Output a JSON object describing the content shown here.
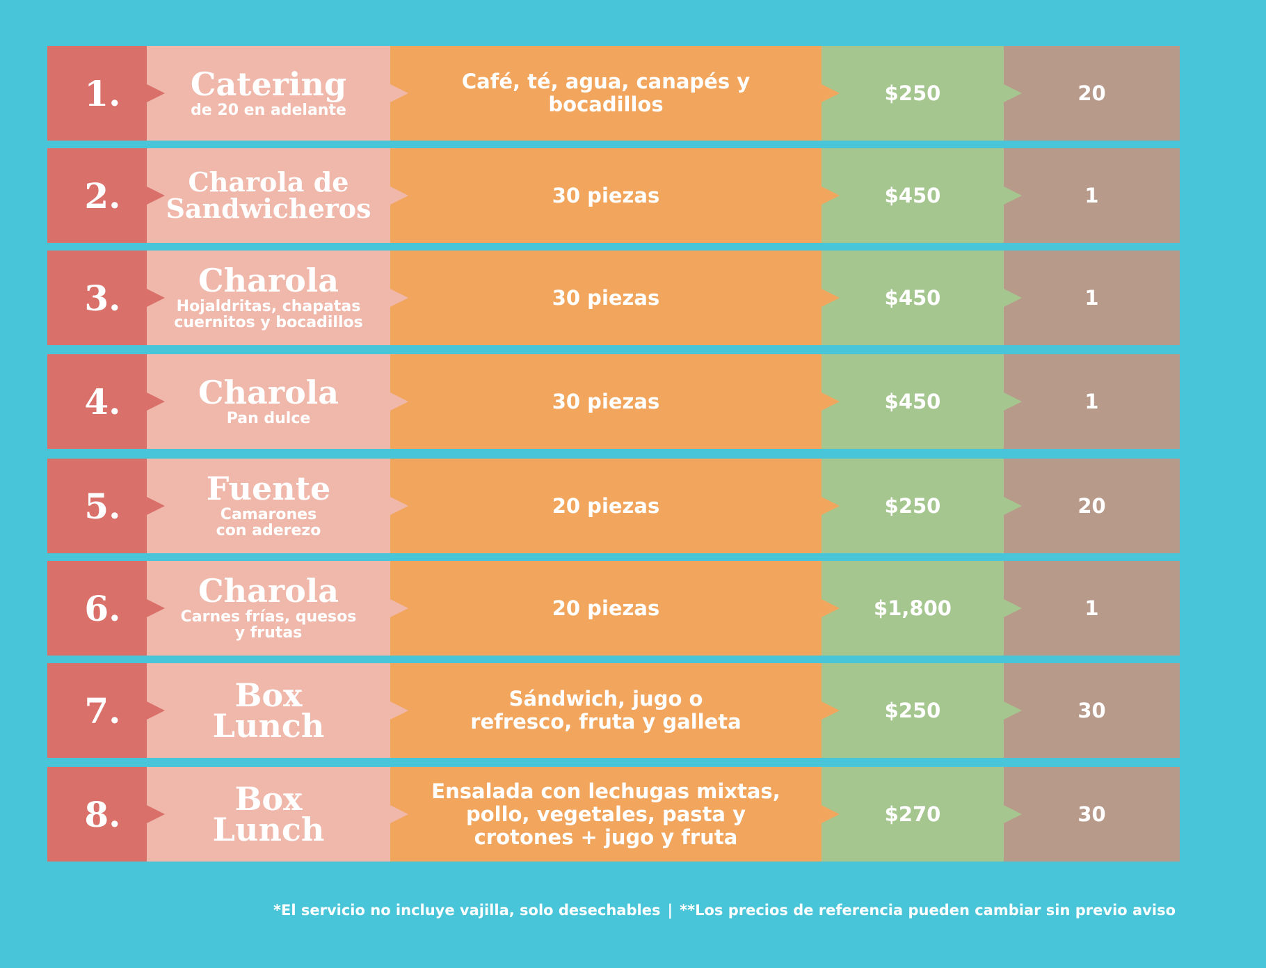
{
  "rows": [
    {
      "number": "1.",
      "title": "Catering",
      "subtitle": "de 20 en adelante",
      "description": "Café, té, agua, canapés y bocadillos",
      "price": "$250",
      "quantity": "20"
    },
    {
      "number": "2.",
      "title": "Charola de\nSandwicheros",
      "subtitle": "",
      "description": "30 piezas",
      "price": "$450",
      "quantity": "1"
    },
    {
      "number": "3.",
      "title": "Charola",
      "subtitle": "Hojaldritas, chapatas\ncuernitos y bocadillos",
      "description": "30 piezas",
      "price": "$450",
      "quantity": "1"
    },
    {
      "number": "4.",
      "title": "Charola",
      "subtitle": "Pan dulce",
      "description": "30 piezas",
      "price": "$450",
      "quantity": "1"
    },
    {
      "number": "5.",
      "title": "Fuente",
      "subtitle": "Camarones\ncon aderezo",
      "description": "20 piezas",
      "price": "$250",
      "quantity": "20"
    },
    {
      "number": "6.",
      "title": "Charola",
      "subtitle": "Carnes frías, quesos\ny frutas",
      "description": "20 piezas",
      "price": "$1,800",
      "quantity": "1"
    },
    {
      "number": "7.",
      "title": "Box\nLunch",
      "subtitle": "",
      "description": "Sándwich, jugo o\nrefresco, fruta y galleta",
      "price": "$250",
      "quantity": "30"
    },
    {
      "number": "8.",
      "title": "Box\nLunch",
      "subtitle": "",
      "description": "Ensalada con lechugas mixtas,\npollo, vegetales, pasta y\ncrotones + jugo y fruta",
      "price": "$270",
      "quantity": "30"
    }
  ],
  "footnote": {
    "note1": "*El servicio no incluye vajilla, solo desechables",
    "separator": "|",
    "note2": "**Los precios de referencia pueden cambiar sin previo aviso"
  },
  "colors": {
    "background": "#48c5d9",
    "number_column": "#d9706a",
    "name_column": "#f0b8ab",
    "description_column": "#f2a55c",
    "price_column": "#a6c690",
    "quantity_column": "#b89a8b",
    "text": "#ffffff"
  }
}
